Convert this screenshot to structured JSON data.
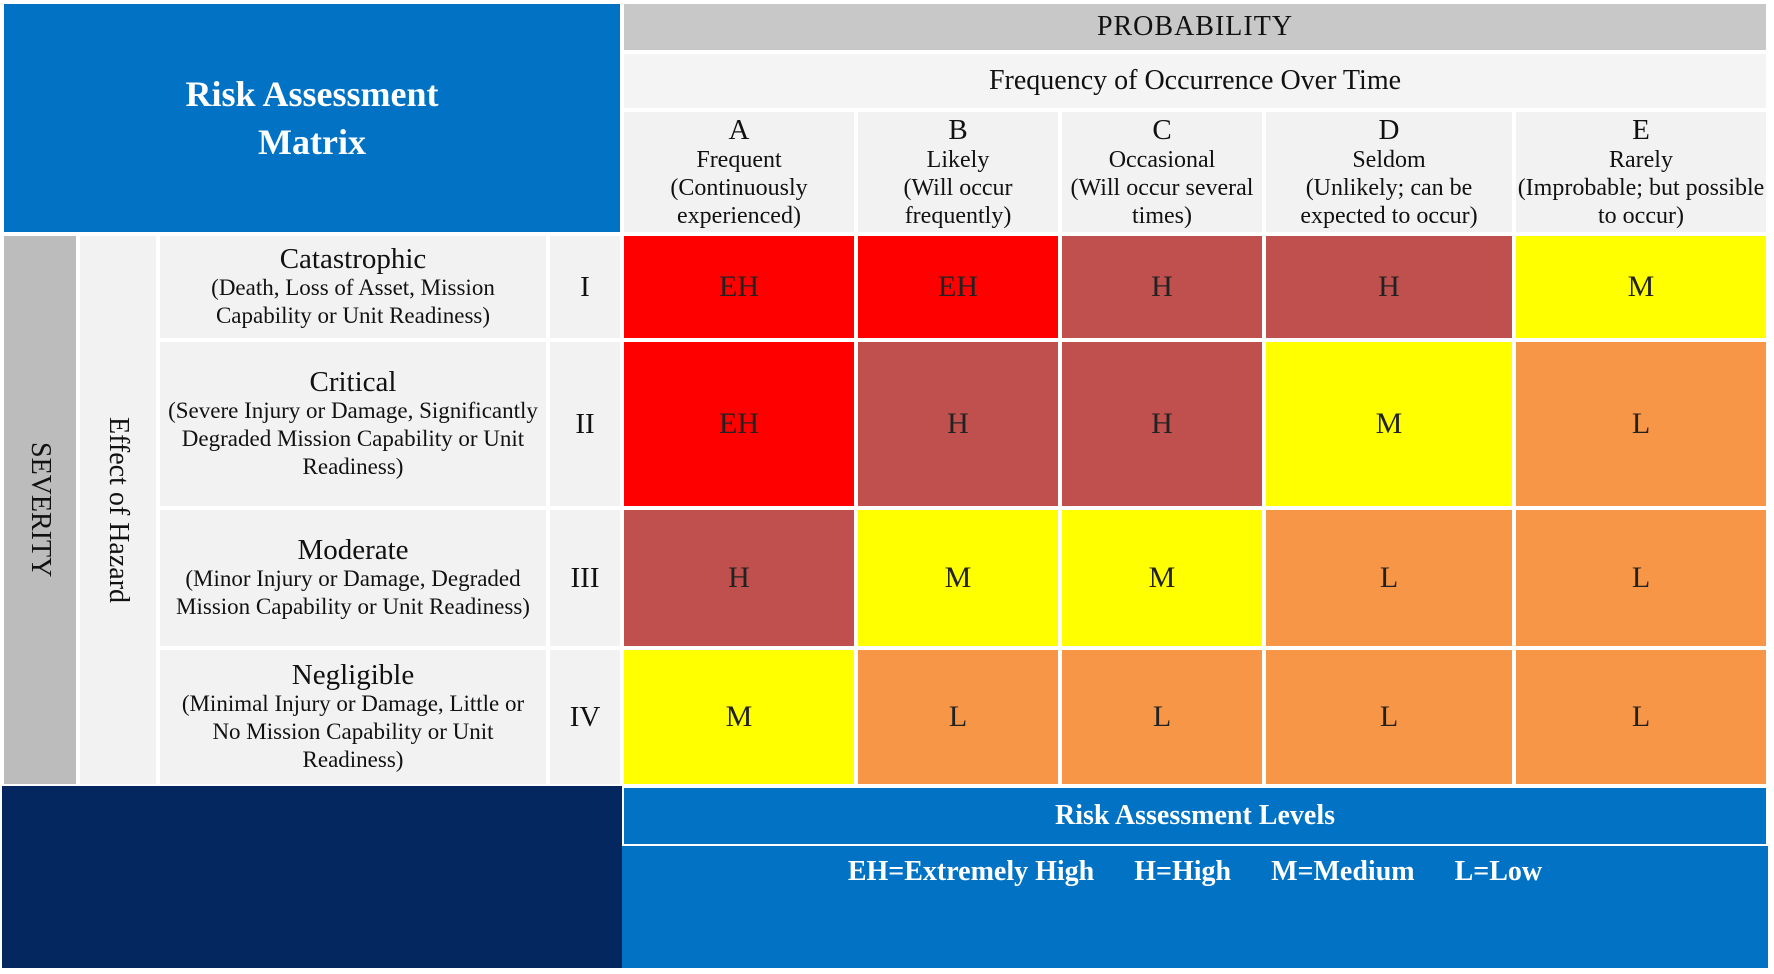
{
  "title": "Risk Assessment Matrix",
  "probability": {
    "header": "PROBABILITY",
    "subheader": "Frequency of Occurrence Over Time",
    "columns": [
      {
        "letter": "A",
        "name": "Frequent",
        "desc": "(Continuously experienced)"
      },
      {
        "letter": "B",
        "name": "Likely",
        "desc": "(Will occur frequently)"
      },
      {
        "letter": "C",
        "name": "Occasional",
        "desc": "(Will occur several times)"
      },
      {
        "letter": "D",
        "name": "Seldom",
        "desc": "(Unlikely; can be expected to occur)"
      },
      {
        "letter": "E",
        "name": "Rarely",
        "desc": "(Improbable; but possible to occur)"
      }
    ]
  },
  "severity": {
    "label": "SEVERITY",
    "effect_label": "Effect of Hazard",
    "rows": [
      {
        "name": "Catastrophic",
        "desc": "(Death, Loss of Asset, Mission Capability or Unit Readiness)",
        "roman": "I",
        "cells": [
          "EH",
          "EH",
          "H",
          "H",
          "M"
        ]
      },
      {
        "name": "Critical",
        "desc": "(Severe Injury or Damage, Significantly Degraded Mission Capability or Unit Readiness)",
        "roman": "II",
        "cells": [
          "EH",
          "H",
          "H",
          "M",
          "L"
        ]
      },
      {
        "name": "Moderate",
        "desc": "(Minor Injury or Damage, Degraded Mission Capability or Unit Readiness)",
        "roman": "III",
        "cells": [
          "H",
          "M",
          "M",
          "L",
          "L"
        ]
      },
      {
        "name": "Negligible",
        "desc": "(Minimal Injury or Damage, Little or No Mission Capability or Unit Readiness)",
        "roman": "IV",
        "cells": [
          "M",
          "L",
          "L",
          "L",
          "L"
        ]
      }
    ]
  },
  "level_colors": {
    "EH": "#ff0000",
    "H": "#c0504d",
    "M": "#ffff00",
    "L": "#f79646"
  },
  "legend": {
    "title": "Risk Assessment Levels",
    "items": [
      "EH=Extremely High",
      "H=High",
      "M=Medium",
      "L=Low"
    ]
  }
}
